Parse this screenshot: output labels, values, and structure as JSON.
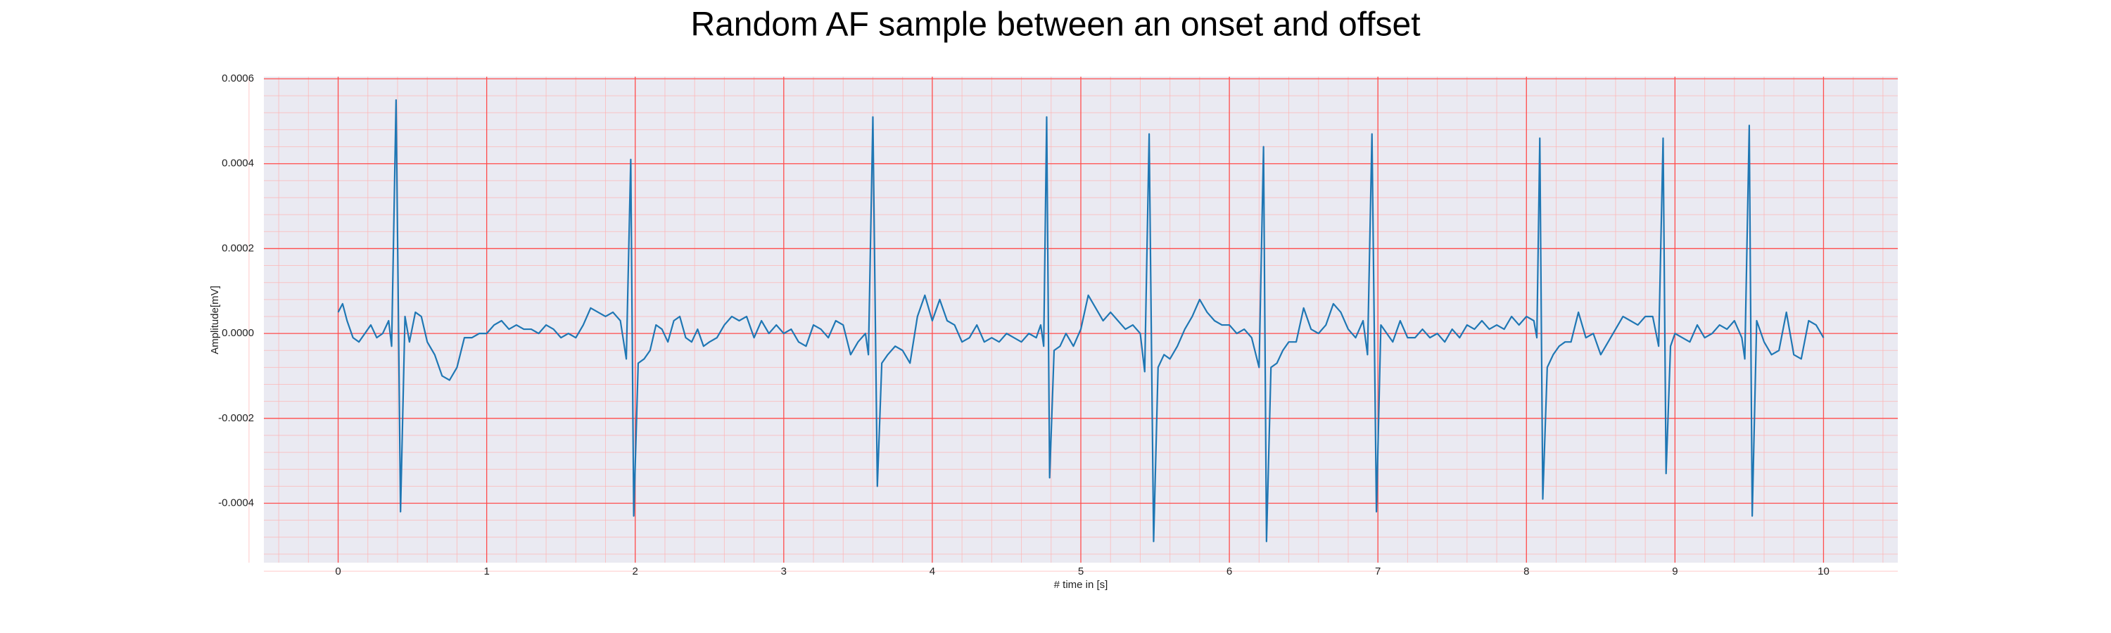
{
  "chart_data": {
    "type": "line",
    "title": "Random AF sample between an onset and offset",
    "xlabel": "# time in [s]",
    "ylabel": "Amplitude[mV]",
    "xlim": [
      -0.5,
      10.5
    ],
    "ylim": [
      -0.00054,
      0.000605
    ],
    "xticks": [
      0,
      1,
      2,
      3,
      4,
      5,
      6,
      7,
      8,
      9,
      10
    ],
    "yticks": [
      -0.0004,
      -0.0002,
      {
        "value": 0,
        "label": "0.0000"
      },
      0.0002,
      0.0004,
      0.0006
    ],
    "grid": true,
    "minor_grid": true,
    "series": [
      {
        "color": "#1f77b4",
        "x": [
          0,
          0.03,
          0.06,
          0.1,
          0.14,
          0.18,
          0.22,
          0.26,
          0.3,
          0.34,
          0.36,
          0.39,
          0.42,
          0.45,
          0.48,
          0.52,
          0.56,
          0.6,
          0.65,
          0.7,
          0.75,
          0.8,
          0.85,
          0.9,
          0.95,
          1.0,
          1.05,
          1.1,
          1.15,
          1.2,
          1.25,
          1.3,
          1.35,
          1.4,
          1.45,
          1.5,
          1.55,
          1.6,
          1.65,
          1.7,
          1.75,
          1.8,
          1.85,
          1.9,
          1.94,
          1.97,
          1.99,
          2.02,
          2.06,
          2.1,
          2.14,
          2.18,
          2.22,
          2.26,
          2.3,
          2.34,
          2.38,
          2.42,
          2.46,
          2.5,
          2.55,
          2.6,
          2.65,
          2.7,
          2.75,
          2.8,
          2.85,
          2.9,
          2.95,
          3.0,
          3.05,
          3.1,
          3.15,
          3.2,
          3.25,
          3.3,
          3.35,
          3.4,
          3.45,
          3.5,
          3.55,
          3.57,
          3.6,
          3.63,
          3.66,
          3.7,
          3.75,
          3.8,
          3.85,
          3.9,
          3.95,
          4.0,
          4.05,
          4.1,
          4.15,
          4.2,
          4.25,
          4.3,
          4.35,
          4.4,
          4.45,
          4.5,
          4.55,
          4.6,
          4.65,
          4.7,
          4.73,
          4.75,
          4.77,
          4.79,
          4.82,
          4.86,
          4.9,
          4.95,
          5.0,
          5.05,
          5.1,
          5.15,
          5.2,
          5.25,
          5.3,
          5.35,
          5.4,
          5.43,
          5.46,
          5.49,
          5.52,
          5.56,
          5.6,
          5.65,
          5.7,
          5.75,
          5.8,
          5.85,
          5.9,
          5.95,
          6.0,
          6.05,
          6.1,
          6.15,
          6.2,
          6.23,
          6.25,
          6.28,
          6.32,
          6.36,
          6.4,
          6.45,
          6.5,
          6.55,
          6.6,
          6.65,
          6.7,
          6.75,
          6.8,
          6.85,
          6.9,
          6.93,
          6.96,
          6.99,
          7.02,
          7.06,
          7.1,
          7.15,
          7.2,
          7.25,
          7.3,
          7.35,
          7.4,
          7.45,
          7.5,
          7.55,
          7.6,
          7.65,
          7.7,
          7.75,
          7.8,
          7.85,
          7.9,
          7.95,
          8.0,
          8.05,
          8.07,
          8.09,
          8.11,
          8.14,
          8.18,
          8.22,
          8.26,
          8.3,
          8.35,
          8.4,
          8.45,
          8.5,
          8.55,
          8.6,
          8.65,
          8.7,
          8.75,
          8.8,
          8.85,
          8.89,
          8.92,
          8.94,
          8.97,
          9.0,
          9.05,
          9.1,
          9.15,
          9.2,
          9.25,
          9.3,
          9.35,
          9.4,
          9.45,
          9.47,
          9.5,
          9.52,
          9.55,
          9.6,
          9.65,
          9.7,
          9.75,
          9.8,
          9.85,
          9.9,
          9.95,
          10.0
        ],
        "values": [
          5e-05,
          7e-05,
          3e-05,
          -1e-05,
          -2e-05,
          0,
          2e-05,
          -1e-05,
          0,
          3e-05,
          -3e-05,
          0.00055,
          -0.00042,
          4e-05,
          -2e-05,
          5e-05,
          4e-05,
          -2e-05,
          -5e-05,
          -0.0001,
          -0.00011,
          -8e-05,
          -1e-05,
          -1e-05,
          0,
          0,
          2e-05,
          3e-05,
          1e-05,
          2e-05,
          1e-05,
          1e-05,
          0,
          2e-05,
          1e-05,
          -1e-05,
          0,
          -1e-05,
          2e-05,
          6e-05,
          5e-05,
          4e-05,
          5e-05,
          3e-05,
          -6e-05,
          0.00041,
          -0.00043,
          -7e-05,
          -6e-05,
          -4e-05,
          2e-05,
          1e-05,
          -2e-05,
          3e-05,
          4e-05,
          -1e-05,
          -2e-05,
          1e-05,
          -3e-05,
          -2e-05,
          -1e-05,
          2e-05,
          4e-05,
          3e-05,
          4e-05,
          -1e-05,
          3e-05,
          0,
          2e-05,
          0,
          1e-05,
          -2e-05,
          -3e-05,
          2e-05,
          1e-05,
          -1e-05,
          3e-05,
          2e-05,
          -5e-05,
          -2e-05,
          0,
          -5e-05,
          0.00051,
          -0.00036,
          -7e-05,
          -5e-05,
          -3e-05,
          -4e-05,
          -7e-05,
          4e-05,
          9e-05,
          3e-05,
          8e-05,
          3e-05,
          2e-05,
          -2e-05,
          -1e-05,
          2e-05,
          -2e-05,
          -1e-05,
          -2e-05,
          0,
          -1e-05,
          -2e-05,
          0,
          -1e-05,
          2e-05,
          -3e-05,
          0.00051,
          -0.00034,
          -4e-05,
          -3e-05,
          0,
          -3e-05,
          1e-05,
          9e-05,
          6e-05,
          3e-05,
          5e-05,
          3e-05,
          1e-05,
          2e-05,
          0,
          -9e-05,
          0.00047,
          -0.00049,
          -8e-05,
          -5e-05,
          -6e-05,
          -3e-05,
          1e-05,
          4e-05,
          8e-05,
          5e-05,
          3e-05,
          2e-05,
          2e-05,
          0,
          1e-05,
          -1e-05,
          -8e-05,
          0.00044,
          -0.00049,
          -8e-05,
          -7e-05,
          -4e-05,
          -2e-05,
          -2e-05,
          6e-05,
          1e-05,
          0,
          2e-05,
          7e-05,
          5e-05,
          1e-05,
          -1e-05,
          3e-05,
          -5e-05,
          0.00047,
          -0.00042,
          2e-05,
          0,
          -2e-05,
          3e-05,
          -1e-05,
          -1e-05,
          1e-05,
          -1e-05,
          0,
          -2e-05,
          1e-05,
          -1e-05,
          2e-05,
          1e-05,
          3e-05,
          1e-05,
          2e-05,
          1e-05,
          4e-05,
          2e-05,
          4e-05,
          3e-05,
          -1e-05,
          0.00046,
          -0.00039,
          -8e-05,
          -5e-05,
          -3e-05,
          -2e-05,
          -2e-05,
          5e-05,
          -1e-05,
          0,
          -5e-05,
          -2e-05,
          1e-05,
          4e-05,
          3e-05,
          2e-05,
          4e-05,
          4e-05,
          -3e-05,
          0.00046,
          -0.00033,
          -3e-05,
          0,
          -1e-05,
          -2e-05,
          2e-05,
          -1e-05,
          0,
          2e-05,
          1e-05,
          3e-05,
          -1e-05,
          -6e-05,
          0.00049,
          -0.00043,
          3e-05,
          -2e-05,
          -5e-05,
          -4e-05,
          5e-05,
          -5e-05,
          -6e-05,
          3e-05,
          2e-05,
          -1e-05
        ]
      }
    ]
  }
}
